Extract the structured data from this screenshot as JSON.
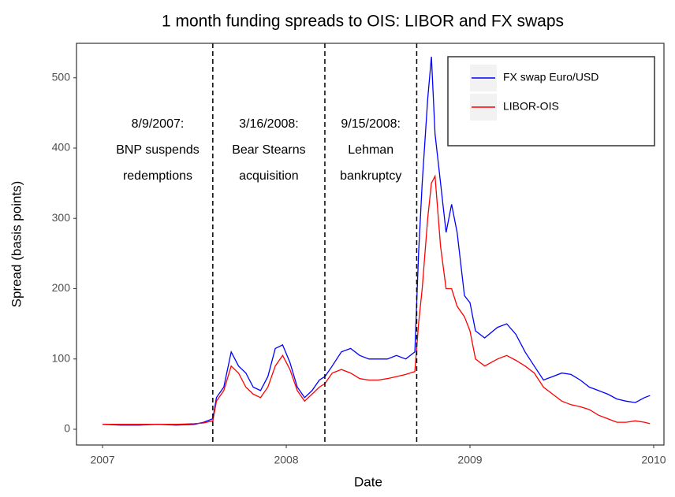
{
  "chart_data": {
    "type": "line",
    "title": "1 month funding spreads to OIS: LIBOR and FX swaps",
    "xlabel": "Date",
    "ylabel": "Spread (basis points)",
    "x": [
      2007.0,
      2007.1,
      2007.2,
      2007.3,
      2007.4,
      2007.5,
      2007.55,
      2007.6,
      2007.62,
      2007.66,
      2007.7,
      2007.74,
      2007.78,
      2007.82,
      2007.86,
      2007.9,
      2007.94,
      2007.98,
      2008.02,
      2008.06,
      2008.1,
      2008.14,
      2008.18,
      2008.21,
      2008.25,
      2008.3,
      2008.35,
      2008.4,
      2008.45,
      2008.5,
      2008.55,
      2008.6,
      2008.65,
      2008.7,
      2008.72,
      2008.74,
      2008.77,
      2008.79,
      2008.81,
      2008.84,
      2008.87,
      2008.9,
      2008.93,
      2008.97,
      2009.0,
      2009.03,
      2009.08,
      2009.15,
      2009.2,
      2009.25,
      2009.3,
      2009.35,
      2009.4,
      2009.45,
      2009.5,
      2009.55,
      2009.6,
      2009.65,
      2009.7,
      2009.75,
      2009.8,
      2009.85,
      2009.9,
      2009.95,
      2009.98
    ],
    "series": [
      {
        "name": "FX swap Euro/USD",
        "color": "#0000ff",
        "values": [
          7,
          6,
          6,
          7,
          6,
          7,
          10,
          15,
          45,
          60,
          110,
          90,
          80,
          60,
          55,
          75,
          115,
          120,
          95,
          60,
          45,
          55,
          70,
          75,
          90,
          110,
          115,
          105,
          100,
          100,
          100,
          105,
          100,
          110,
          250,
          350,
          470,
          530,
          420,
          350,
          280,
          320,
          280,
          190,
          180,
          140,
          130,
          145,
          150,
          135,
          110,
          90,
          70,
          75,
          80,
          78,
          70,
          60,
          55,
          50,
          43,
          40,
          38,
          45,
          48
        ]
      },
      {
        "name": "LIBOR-OIS",
        "color": "#ff0000",
        "values": [
          7,
          7,
          7,
          7,
          7,
          8,
          9,
          12,
          40,
          55,
          90,
          80,
          60,
          50,
          45,
          60,
          90,
          105,
          85,
          55,
          40,
          50,
          60,
          65,
          80,
          85,
          80,
          72,
          70,
          70,
          72,
          75,
          78,
          82,
          150,
          200,
          300,
          350,
          360,
          260,
          200,
          200,
          175,
          160,
          140,
          100,
          90,
          100,
          105,
          98,
          90,
          80,
          60,
          50,
          40,
          35,
          32,
          28,
          20,
          15,
          10,
          10,
          12,
          10,
          8
        ]
      }
    ],
    "annotations": [
      {
        "x": 2007.6,
        "lines": [
          "8/9/2007:",
          "BNP suspends",
          "redemptions"
        ]
      },
      {
        "x": 2008.21,
        "lines": [
          "3/16/2008:",
          "Bear Stearns",
          "acquisition"
        ]
      },
      {
        "x": 2008.71,
        "lines": [
          "9/15/2008:",
          "Lehman",
          "bankruptcy"
        ]
      }
    ],
    "xlim": [
      2006.858,
      2010.056
    ],
    "xticks": [
      2007,
      2008,
      2009,
      2010
    ],
    "ylim": [
      -22.4,
      549
    ],
    "yticks": [
      0,
      100,
      200,
      300,
      400,
      500
    ],
    "grid": false,
    "legend": "top-right"
  }
}
